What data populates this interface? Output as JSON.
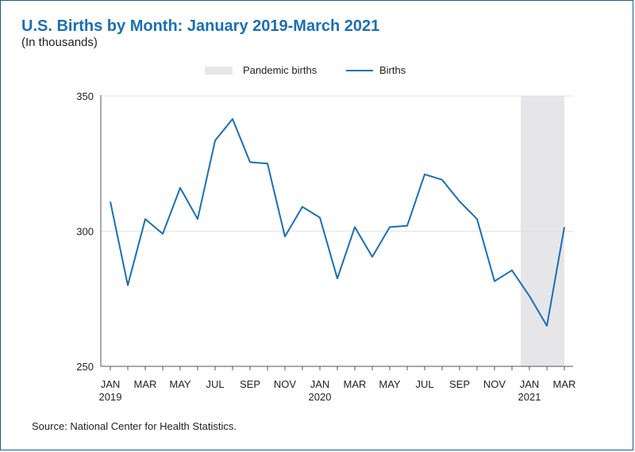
{
  "header": {
    "title": "U.S. Births by Month: January 2019-March 2021",
    "subtitle": "(In thousands)"
  },
  "footer": {
    "source": "Source: National Center for Health Statistics."
  },
  "colors": {
    "title": "#1a6fb5",
    "line": "#1a6fb5",
    "shade": "#e6e6e8",
    "frame": "#1c5a8e"
  },
  "chart_data": {
    "type": "line",
    "title": "U.S. Births by Month: January 2019-March 2021",
    "subtitle": "(In thousands)",
    "xlabel": "",
    "ylabel": "",
    "ylim": [
      250,
      350
    ],
    "yticks": [
      250,
      300,
      350
    ],
    "legend": {
      "position": "top-center",
      "entries": [
        "Pandemic births",
        "Births"
      ]
    },
    "x": [
      "Jan 2019",
      "Feb 2019",
      "Mar 2019",
      "Apr 2019",
      "May 2019",
      "Jun 2019",
      "Jul 2019",
      "Aug 2019",
      "Sep 2019",
      "Oct 2019",
      "Nov 2019",
      "Dec 2019",
      "Jan 2020",
      "Feb 2020",
      "Mar 2020",
      "Apr 2020",
      "May 2020",
      "Jun 2020",
      "Jul 2020",
      "Aug 2020",
      "Sep 2020",
      "Oct 2020",
      "Nov 2020",
      "Dec 2020",
      "Jan 2021",
      "Feb 2021",
      "Mar 2021"
    ],
    "tick_labels": [
      {
        "index": 0,
        "month": "JAN",
        "year": "2019"
      },
      {
        "index": 2,
        "month": "MAR",
        "year": ""
      },
      {
        "index": 4,
        "month": "MAY",
        "year": ""
      },
      {
        "index": 6,
        "month": "JUL",
        "year": ""
      },
      {
        "index": 8,
        "month": "SEP",
        "year": ""
      },
      {
        "index": 10,
        "month": "NOV",
        "year": ""
      },
      {
        "index": 12,
        "month": "JAN",
        "year": "2020"
      },
      {
        "index": 14,
        "month": "MAR",
        "year": ""
      },
      {
        "index": 16,
        "month": "MAY",
        "year": ""
      },
      {
        "index": 18,
        "month": "JUL",
        "year": ""
      },
      {
        "index": 20,
        "month": "SEP",
        "year": ""
      },
      {
        "index": 22,
        "month": "NOV",
        "year": ""
      },
      {
        "index": 24,
        "month": "JAN",
        "year": "2021"
      },
      {
        "index": 26,
        "month": "MAR",
        "year": ""
      }
    ],
    "shaded_region": {
      "label": "Pandemic births",
      "from_index": 23.5,
      "to_index": 26
    },
    "series": [
      {
        "name": "Births",
        "values": [
          310.9,
          280.0,
          304.5,
          299.0,
          316.0,
          304.5,
          333.5,
          341.5,
          325.5,
          325.0,
          298.0,
          309.0,
          305.0,
          282.5,
          301.5,
          290.5,
          301.5,
          302.0,
          321.0,
          319.0,
          311.0,
          304.5,
          281.5,
          285.5,
          276.0,
          265.0,
          301.5
        ]
      }
    ]
  }
}
